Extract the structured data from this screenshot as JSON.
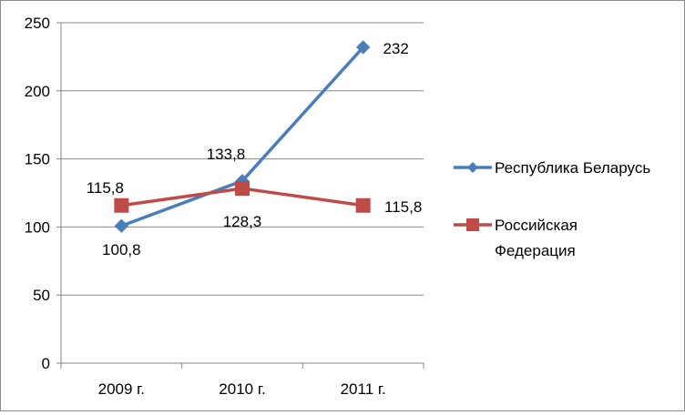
{
  "chart_data": {
    "type": "line",
    "categories": [
      "2009 г.",
      "2010 г.",
      "2011 г."
    ],
    "ylim": [
      0,
      250
    ],
    "yticks": [
      0,
      50,
      100,
      150,
      200,
      250
    ],
    "grid": true,
    "legend_position": "right",
    "series": [
      {
        "name": "Республика Беларусь",
        "name_lines": [
          "Республика Беларусь"
        ],
        "values": [
          100.8,
          133.8,
          232
        ],
        "labels": [
          "100,8",
          "133,8",
          "232"
        ],
        "color": "#4a7ebb",
        "marker": "diamond"
      },
      {
        "name": "Российская Федерация",
        "name_lines": [
          "Российская",
          "Федерация"
        ],
        "values": [
          115.8,
          128.3,
          115.8
        ],
        "labels": [
          "115,8",
          "128,3",
          "115,8"
        ],
        "color": "#be4b48",
        "marker": "square"
      }
    ]
  }
}
